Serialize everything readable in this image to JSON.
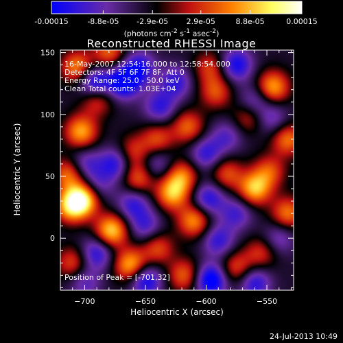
{
  "colorbar": {
    "tick_labels": [
      "-0.00015",
      "-8.8e-05",
      "-2.9e-05",
      "2.9e-05",
      "8.8e-05",
      "0.00015"
    ],
    "tick_values": [
      -0.00015,
      -8.8e-05,
      -2.9e-05,
      2.9e-05,
      8.8e-05,
      0.00015
    ],
    "range": [
      -0.00015,
      0.00015
    ],
    "units_html": "(photons cm<sup>-2</sup> s<sup>-1</sup> asec<sup>-2</sup>)",
    "colors": [
      "#0000ff",
      "#6a2ca8",
      "#000000",
      "#c01010",
      "#ff8000",
      "#ffff60",
      "#ffffff"
    ]
  },
  "chart_data": {
    "type": "heatmap",
    "title": "Reconstructed RHESSI Image",
    "xlabel": "Heliocentric X (arcsec)",
    "ylabel": "Heliocentric Y (arcsec)",
    "xlim": [
      -720,
      -528
    ],
    "ylim": [
      -42,
      152
    ],
    "x_ticks": [
      -700,
      -650,
      -600,
      -550
    ],
    "y_ticks": [
      0,
      50,
      100,
      150
    ],
    "annotations": {
      "time_range": "16-May-2007 12:54:16.000 to 12:58:54.000",
      "detectors": "Detectors: 4F 5F 6F 7F 8F, Att 0",
      "energy": "Energy Range: 25.0 - 50.0 keV",
      "method": "Clean     Total counts: 1.03E+04",
      "peak": "Position of Peak = [-701,32]"
    },
    "sources": [
      {
        "x": -706,
        "y": 138,
        "value": 0.00011
      },
      {
        "x": -680,
        "y": 150,
        "value": 9e-05
      },
      {
        "x": -690,
        "y": 112,
        "value": 8e-05
      },
      {
        "x": -703,
        "y": 86,
        "value": 0.00012
      },
      {
        "x": -713,
        "y": 52,
        "value": 0.0001
      },
      {
        "x": -711,
        "y": 26,
        "value": 0.00013
      },
      {
        "x": -701,
        "y": 32,
        "value": 0.00015
      },
      {
        "x": -678,
        "y": 6,
        "value": 0.00014
      },
      {
        "x": -656,
        "y": 48,
        "value": 9e-05
      },
      {
        "x": -660,
        "y": 70,
        "value": 7e-05
      },
      {
        "x": -640,
        "y": 80,
        "value": 8e-05
      },
      {
        "x": -615,
        "y": 90,
        "value": 9e-05
      },
      {
        "x": -592,
        "y": 118,
        "value": 8e-05
      },
      {
        "x": -597,
        "y": 138,
        "value": 7e-05
      },
      {
        "x": -545,
        "y": 122,
        "value": 0.00012
      },
      {
        "x": -565,
        "y": 98,
        "value": 7e-05
      },
      {
        "x": -533,
        "y": 80,
        "value": 0.0001
      },
      {
        "x": -620,
        "y": 50,
        "value": 0.0001
      },
      {
        "x": -628,
        "y": 36,
        "value": 0.00012
      },
      {
        "x": -583,
        "y": 52,
        "value": 8e-05
      },
      {
        "x": -560,
        "y": 40,
        "value": 0.00013
      },
      {
        "x": -548,
        "y": 54,
        "value": 8e-05
      },
      {
        "x": -533,
        "y": 20,
        "value": 0.0001
      },
      {
        "x": -610,
        "y": 14,
        "value": 0.00011
      },
      {
        "x": -640,
        "y": -8,
        "value": 8e-05
      },
      {
        "x": -662,
        "y": -22,
        "value": 0.00013
      },
      {
        "x": -618,
        "y": -30,
        "value": 9e-05
      },
      {
        "x": -575,
        "y": -24,
        "value": 8e-05
      },
      {
        "x": -555,
        "y": -12,
        "value": 7e-05
      },
      {
        "x": -710,
        "y": -20,
        "value": 8e-05
      },
      {
        "x": -692,
        "y": 126,
        "value": -0.00012
      },
      {
        "x": -668,
        "y": 126,
        "value": -0.00013
      },
      {
        "x": -655,
        "y": 138,
        "value": -9e-05
      },
      {
        "x": -625,
        "y": 126,
        "value": -8e-05
      },
      {
        "x": -575,
        "y": 140,
        "value": -0.0001
      },
      {
        "x": -560,
        "y": 110,
        "value": -7e-05
      },
      {
        "x": -638,
        "y": 106,
        "value": -8e-05
      },
      {
        "x": -700,
        "y": 60,
        "value": -7e-05
      },
      {
        "x": -675,
        "y": 60,
        "value": -9e-05
      },
      {
        "x": -640,
        "y": 60,
        "value": -6e-05
      },
      {
        "x": -600,
        "y": 68,
        "value": -8e-05
      },
      {
        "x": -583,
        "y": 82,
        "value": -6e-05
      },
      {
        "x": -545,
        "y": 96,
        "value": -6e-05
      },
      {
        "x": -690,
        "y": 42,
        "value": -6e-05
      },
      {
        "x": -598,
        "y": 32,
        "value": -9e-05
      },
      {
        "x": -575,
        "y": 20,
        "value": -7e-05
      },
      {
        "x": -660,
        "y": 28,
        "value": -8e-05
      },
      {
        "x": -690,
        "y": -12,
        "value": -9e-05
      },
      {
        "x": -650,
        "y": 10,
        "value": -7e-05
      },
      {
        "x": -590,
        "y": -2,
        "value": -8e-05
      },
      {
        "x": -596,
        "y": -34,
        "value": -0.00013
      },
      {
        "x": -650,
        "y": -34,
        "value": -0.00011
      },
      {
        "x": -560,
        "y": -36,
        "value": -9e-05
      },
      {
        "x": -540,
        "y": 0,
        "value": -6e-05
      },
      {
        "x": -700,
        "y": -36,
        "value": -6e-05
      }
    ]
  },
  "footer": {
    "date": "24-Jul-2013 10:49"
  }
}
